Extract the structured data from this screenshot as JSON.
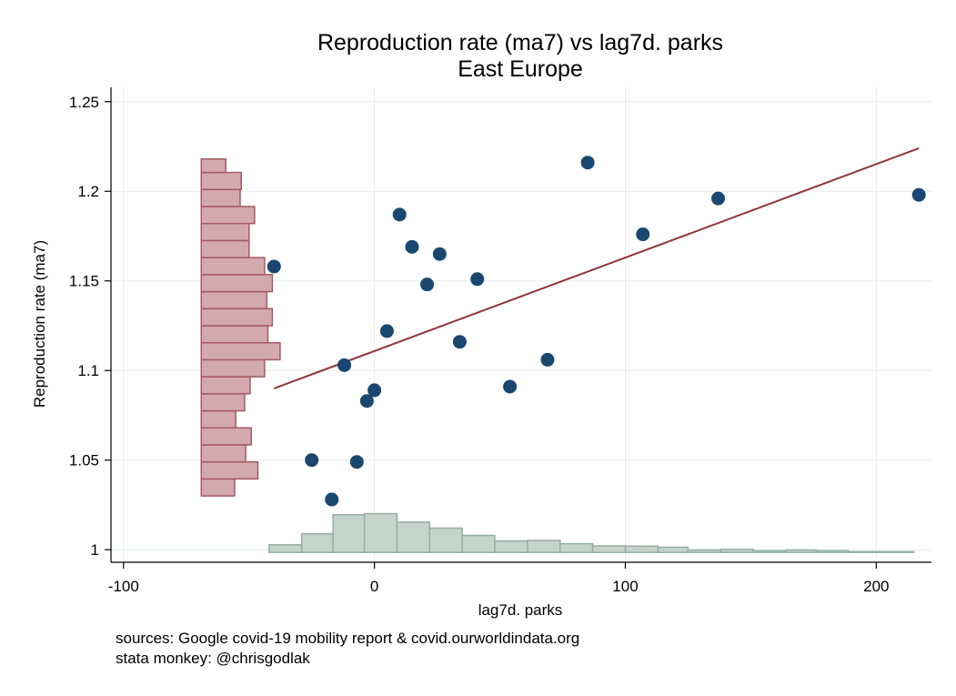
{
  "chart_data": {
    "type": "scatter",
    "title": "Reproduction rate (ma7) vs lag7d. parks",
    "subtitle": "East Europe",
    "xlabel": "lag7d. parks",
    "ylabel": "Reproduction rate (ma7)",
    "xlim": [
      -105,
      222
    ],
    "ylim": [
      0.993,
      1.258
    ],
    "xticks": [
      -100,
      0,
      100,
      200
    ],
    "xtick_labels": [
      "-100",
      "0",
      "100",
      "200"
    ],
    "yticks": [
      1,
      1.05,
      1.1,
      1.15,
      1.2,
      1.25
    ],
    "ytick_labels": [
      "1",
      "1.05",
      "1.1",
      "1.15",
      "1.2",
      "1.25"
    ],
    "grid": true,
    "points": [
      {
        "x": -40,
        "y": 1.158
      },
      {
        "x": -25,
        "y": 1.05
      },
      {
        "x": -17,
        "y": 1.028
      },
      {
        "x": -12,
        "y": 1.103
      },
      {
        "x": -7,
        "y": 1.049
      },
      {
        "x": -3,
        "y": 1.083
      },
      {
        "x": 0,
        "y": 1.089
      },
      {
        "x": 5,
        "y": 1.122
      },
      {
        "x": 10,
        "y": 1.187
      },
      {
        "x": 15,
        "y": 1.169
      },
      {
        "x": 21,
        "y": 1.148
      },
      {
        "x": 26,
        "y": 1.165
      },
      {
        "x": 34,
        "y": 1.116
      },
      {
        "x": 41,
        "y": 1.151
      },
      {
        "x": 54,
        "y": 1.091
      },
      {
        "x": 69,
        "y": 1.106
      },
      {
        "x": 85,
        "y": 1.216
      },
      {
        "x": 107,
        "y": 1.176
      },
      {
        "x": 137,
        "y": 1.196
      },
      {
        "x": 217,
        "y": 1.198
      }
    ],
    "fit_line": {
      "x": [
        -40,
        217
      ],
      "y": [
        1.09,
        1.224
      ]
    },
    "y_histogram": {
      "bins": [
        [
          1.03,
          1.0395,
          0.3
        ],
        [
          1.0395,
          1.049,
          0.51
        ],
        [
          1.049,
          1.0585,
          0.4
        ],
        [
          1.0585,
          1.068,
          0.45
        ],
        [
          1.068,
          1.0775,
          0.31
        ],
        [
          1.0775,
          1.087,
          0.39
        ],
        [
          1.087,
          1.0965,
          0.44
        ],
        [
          1.0965,
          1.106,
          0.57
        ],
        [
          1.106,
          1.1155,
          0.71
        ],
        [
          1.1155,
          1.125,
          0.6
        ],
        [
          1.125,
          1.1345,
          0.64
        ],
        [
          1.1345,
          1.144,
          0.59
        ],
        [
          1.144,
          1.1535,
          0.64
        ],
        [
          1.1535,
          1.163,
          0.57
        ],
        [
          1.163,
          1.1725,
          0.43
        ],
        [
          1.1725,
          1.182,
          0.43
        ],
        [
          1.182,
          1.1915,
          0.48
        ],
        [
          1.1915,
          1.201,
          0.35
        ],
        [
          1.201,
          1.2105,
          0.36
        ],
        [
          1.2105,
          1.218,
          0.22
        ]
      ]
    },
    "x_histogram": {
      "bins": [
        [
          -42,
          -29,
          0.28
        ],
        [
          -29,
          -16.5,
          0.68
        ],
        [
          -16.5,
          -4,
          1.38
        ],
        [
          -4,
          9,
          1.42
        ],
        [
          9,
          22,
          1.11
        ],
        [
          22,
          35,
          0.89
        ],
        [
          35,
          48,
          0.62
        ],
        [
          48,
          61,
          0.42
        ],
        [
          61,
          74,
          0.44
        ],
        [
          74,
          87,
          0.32
        ],
        [
          87,
          100,
          0.24
        ],
        [
          100,
          113,
          0.23
        ],
        [
          113,
          125,
          0.19
        ],
        [
          125,
          138,
          0.09
        ],
        [
          138,
          151,
          0.11
        ],
        [
          151,
          164,
          0.06
        ],
        [
          164,
          176,
          0.09
        ],
        [
          176,
          189,
          0.06
        ],
        [
          189,
          215,
          0.03
        ]
      ]
    }
  },
  "footer": {
    "line1": "sources: Google covid-19 mobility report & covid.ourworldindata.org",
    "line2": "stata monkey: @chrisgodlak"
  },
  "colors": {
    "marker": "#1a476f",
    "fit": "#90353b",
    "y_hist_fill": "#d4a9ad",
    "y_hist_stroke": "#a35a61",
    "x_hist_fill": "#c5d3cd",
    "x_hist_stroke": "#96aea4",
    "grid": "#e8eaea"
  }
}
